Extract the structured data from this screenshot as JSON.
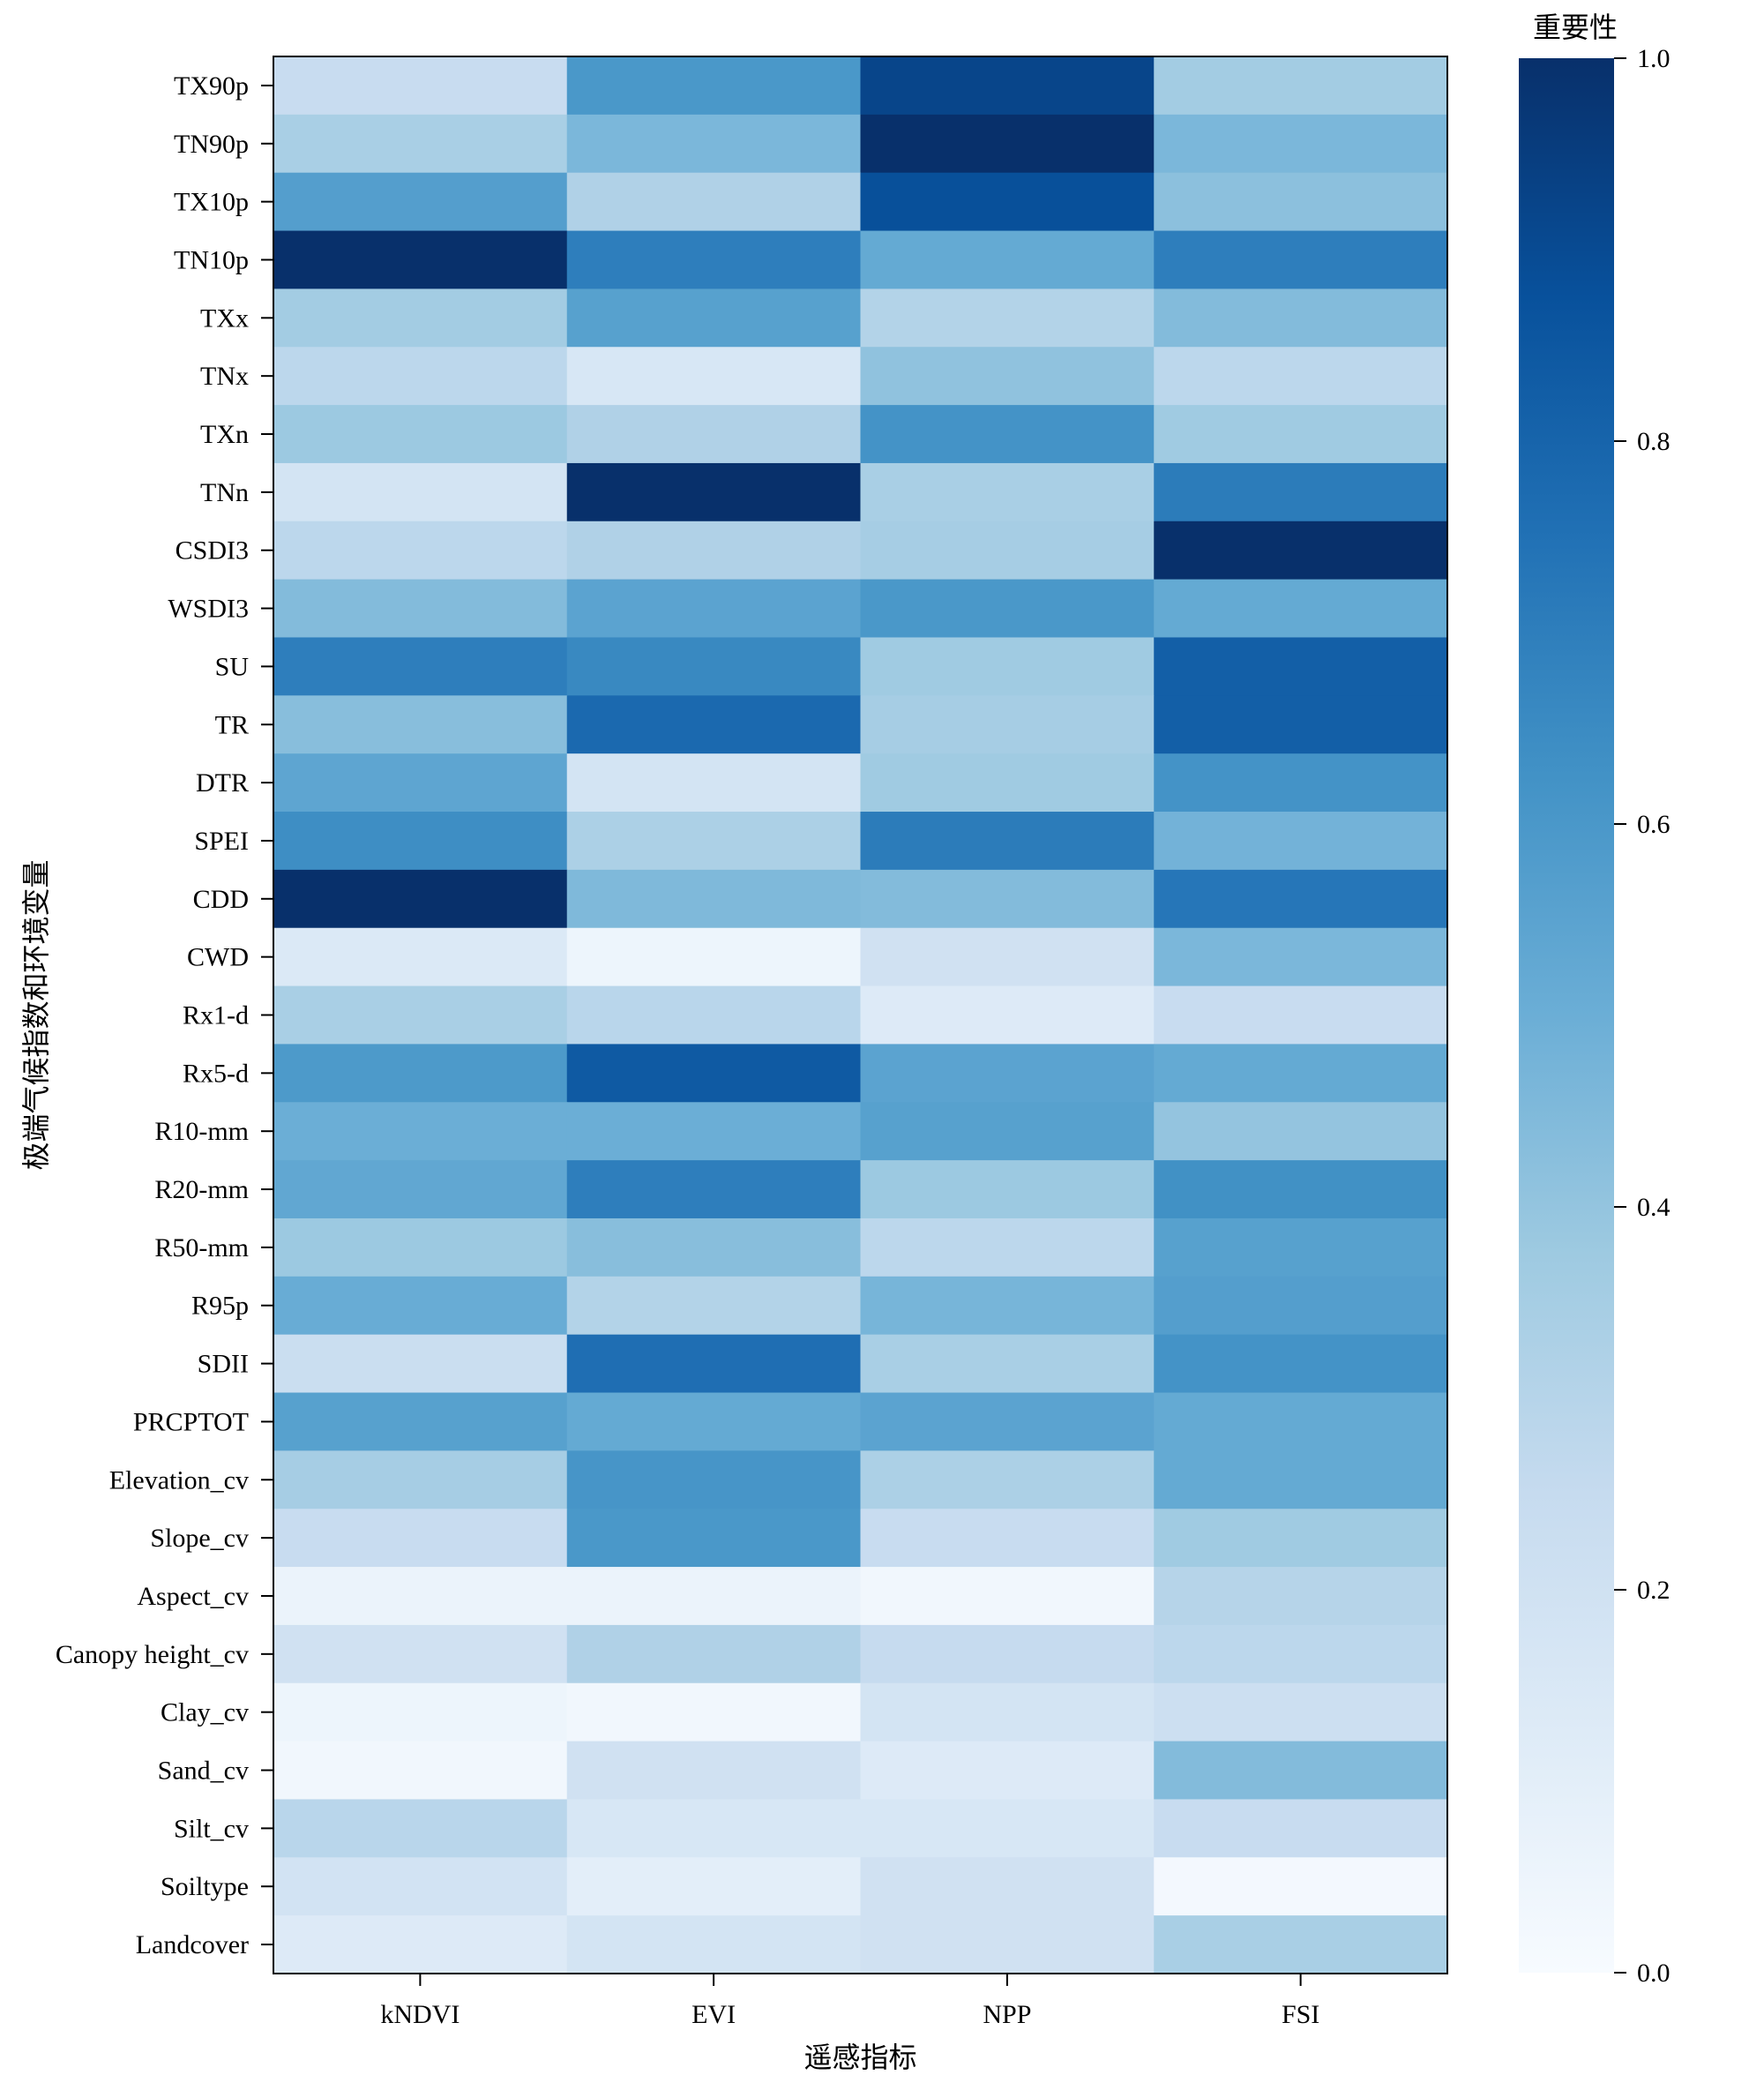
{
  "chart_data": {
    "type": "heatmap",
    "xlabel": "遥感指标",
    "ylabel": "极端气候指数和环境变量",
    "x_categories": [
      "kNDVI",
      "EVI",
      "NPP",
      "FSI"
    ],
    "y_categories": [
      "TX90p",
      "TN90p",
      "TX10p",
      "TN10p",
      "TXx",
      "TNx",
      "TXn",
      "TNn",
      "CSDI3",
      "WSDI3",
      "SU",
      "TR",
      "DTR",
      "SPEI",
      "CDD",
      "CWD",
      "Rx1-d",
      "Rx5-d",
      "R10-mm",
      "R20-mm",
      "R50-mm",
      "R95p",
      "SDII",
      "PRCPTOT",
      "Elevation_cv",
      "Slope_cv",
      "Aspect_cv",
      "Canopy height_cv",
      "Clay_cv",
      "Sand_cv",
      "Silt_cv",
      "Soiltype",
      "Landcover"
    ],
    "values": [
      [
        0.24,
        0.6,
        0.92,
        0.36
      ],
      [
        0.34,
        0.46,
        1.0,
        0.46
      ],
      [
        0.57,
        0.32,
        0.88,
        0.42
      ],
      [
        1.0,
        0.7,
        0.52,
        0.7
      ],
      [
        0.36,
        0.56,
        0.31,
        0.44
      ],
      [
        0.28,
        0.16,
        0.41,
        0.28
      ],
      [
        0.38,
        0.32,
        0.62,
        0.37
      ],
      [
        0.18,
        1.0,
        0.34,
        0.71
      ],
      [
        0.28,
        0.32,
        0.35,
        1.0
      ],
      [
        0.44,
        0.55,
        0.6,
        0.52
      ],
      [
        0.7,
        0.66,
        0.37,
        0.82
      ],
      [
        0.43,
        0.78,
        0.35,
        0.82
      ],
      [
        0.54,
        0.18,
        0.37,
        0.62
      ],
      [
        0.64,
        0.33,
        0.71,
        0.48
      ],
      [
        1.0,
        0.45,
        0.44,
        0.73
      ],
      [
        0.14,
        0.05,
        0.2,
        0.46
      ],
      [
        0.34,
        0.29,
        0.13,
        0.24
      ],
      [
        0.59,
        0.84,
        0.55,
        0.52
      ],
      [
        0.5,
        0.5,
        0.56,
        0.4
      ],
      [
        0.53,
        0.7,
        0.38,
        0.63
      ],
      [
        0.38,
        0.43,
        0.28,
        0.56
      ],
      [
        0.51,
        0.31,
        0.47,
        0.57
      ],
      [
        0.23,
        0.76,
        0.34,
        0.62
      ],
      [
        0.56,
        0.52,
        0.55,
        0.52
      ],
      [
        0.35,
        0.61,
        0.33,
        0.52
      ],
      [
        0.24,
        0.6,
        0.24,
        0.37
      ],
      [
        0.06,
        0.06,
        0.03,
        0.3
      ],
      [
        0.2,
        0.32,
        0.25,
        0.28
      ],
      [
        0.05,
        0.03,
        0.18,
        0.22
      ],
      [
        0.03,
        0.2,
        0.13,
        0.44
      ],
      [
        0.29,
        0.16,
        0.16,
        0.24
      ],
      [
        0.19,
        0.1,
        0.2,
        0.02
      ],
      [
        0.13,
        0.18,
        0.2,
        0.34
      ]
    ],
    "colorbar": {
      "title": "重要性",
      "range": [
        0,
        1
      ],
      "ticks": [
        "0.0",
        "0.2",
        "0.4",
        "0.6",
        "0.8",
        "1.0"
      ],
      "colormap": "Blues"
    },
    "grid": false
  }
}
